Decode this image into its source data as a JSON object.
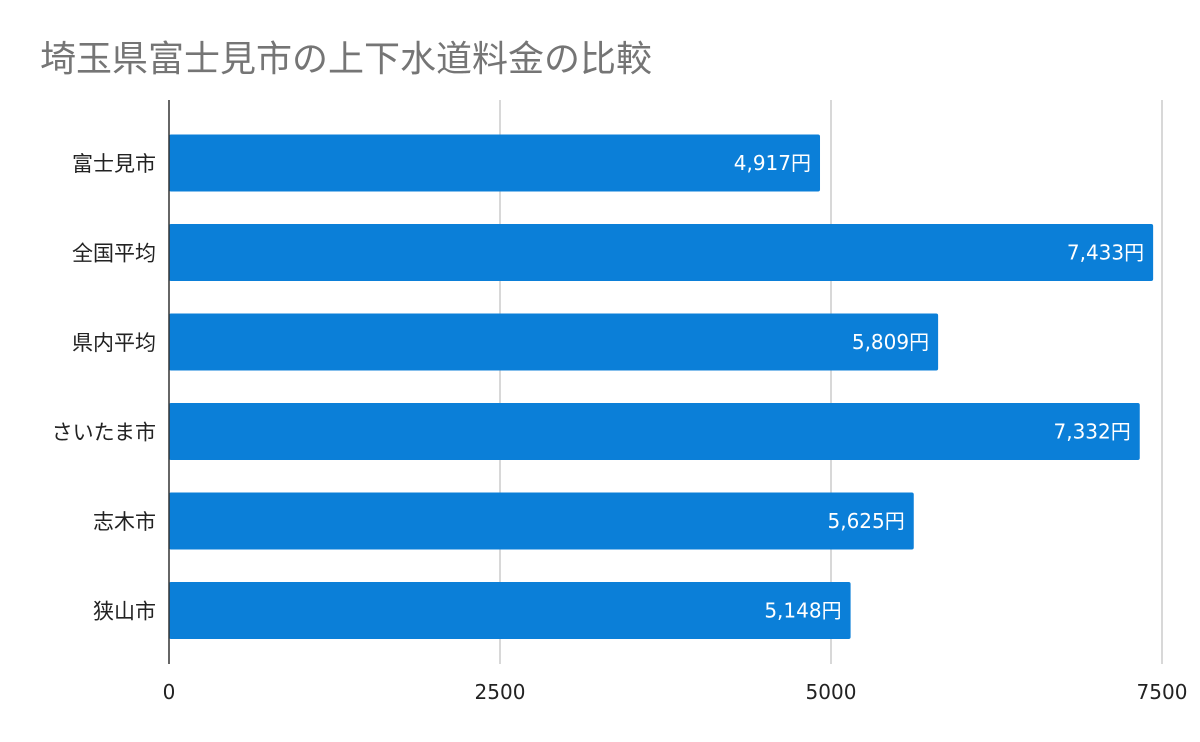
{
  "chart_data": {
    "type": "bar",
    "orientation": "horizontal",
    "title": "埼玉県富士見市の上下水道料金の比較",
    "categories": [
      "富士見市",
      "全国平均",
      "県内平均",
      "さいたま市",
      "志木市",
      "狭山市"
    ],
    "values": [
      4917,
      7433,
      5809,
      7332,
      5625,
      5148
    ],
    "data_labels": [
      "4,917円",
      "7,433円",
      "5,809円",
      "7,332円",
      "5,625円",
      "5,148円"
    ],
    "xlim": [
      0,
      7500
    ],
    "x_ticks": [
      0,
      2500,
      5000,
      7500
    ],
    "x_tick_labels": [
      "0",
      "2500",
      "5000",
      "7500"
    ],
    "xlabel": "",
    "ylabel": "",
    "grid": true,
    "legend": "none",
    "bar_color": "#0b7fd8",
    "grid_color": "#cccccc",
    "axis_color": "#333333"
  }
}
